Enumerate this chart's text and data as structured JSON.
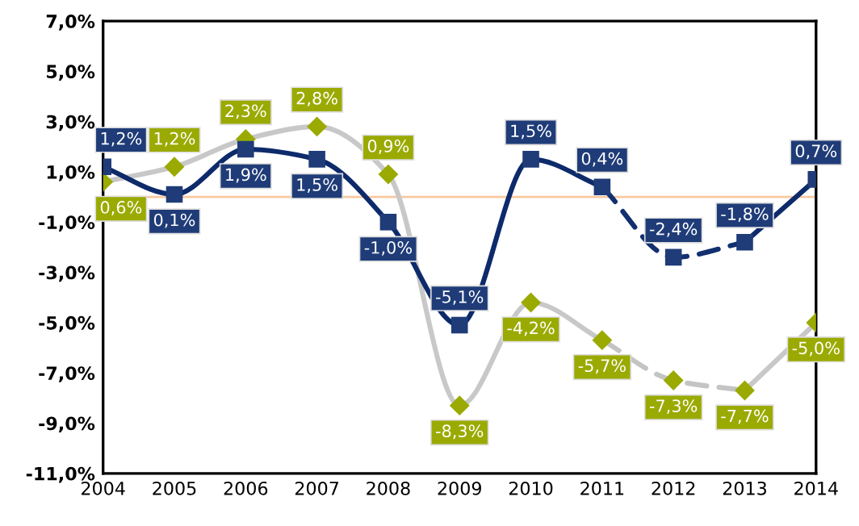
{
  "chart_data": {
    "type": "line",
    "categories": [
      "2004",
      "2005",
      "2006",
      "2007",
      "2008",
      "2009",
      "2010",
      "2011",
      "2012",
      "2013",
      "2014"
    ],
    "series": [
      {
        "color": "#c8c8c8",
        "line_style": "solid",
        "values": [
          0.6,
          1.2,
          2.3,
          2.8,
          0.9,
          -8.3,
          -4.2,
          -5.7,
          null,
          -7.7,
          -5.0
        ]
      },
      {
        "color": "#c4c4c4",
        "line_style": "dashed",
        "values": [
          null,
          null,
          null,
          null,
          null,
          null,
          null,
          -5.7,
          -7.3,
          -7.7,
          null
        ]
      },
      {
        "color": "#0d2a6b",
        "line_style": "solid",
        "values": [
          1.2,
          0.1,
          1.9,
          1.5,
          -1.0,
          -5.1,
          1.5,
          0.4,
          null,
          -1.8,
          0.7
        ]
      },
      {
        "color": "#12306f",
        "line_style": "dashed",
        "values": [
          null,
          null,
          null,
          null,
          null,
          null,
          null,
          0.4,
          -2.4,
          -1.8,
          null
        ]
      },
      {
        "type": "scatter",
        "color": "#9aaa00",
        "marker": "diamond",
        "values": [
          0.6,
          1.2,
          2.3,
          2.8,
          0.9,
          -8.3,
          -4.2,
          -5.7,
          -7.3,
          -7.7,
          -5.0
        ],
        "value_labels": [
          "0,6%",
          "1,2%",
          "2,3%",
          "2,8%",
          "0,9%",
          "-8,3%",
          "-4,2%",
          "-5,7%",
          "-7,3%",
          "-7,7%",
          "-5,0%"
        ]
      },
      {
        "type": "scatter",
        "color": "#1f3c78",
        "marker": "square",
        "values": [
          1.2,
          0.1,
          1.9,
          1.5,
          -1.0,
          -5.1,
          1.5,
          0.4,
          -2.4,
          -1.8,
          0.7
        ],
        "value_labels": [
          "1,2%",
          "0,1%",
          "1,9%",
          "1,5%",
          "-1,0%",
          "-5,1%",
          "1,5%",
          "0,4%",
          "-2,4%",
          "-1,8%",
          "0,7%"
        ]
      }
    ],
    "ylim": [
      -11,
      7
    ],
    "yticks": [
      {
        "value": -11,
        "label": "-11,0%"
      },
      {
        "value": -9,
        "label": "-9,0%"
      },
      {
        "value": -7,
        "label": "-7,0%"
      },
      {
        "value": -5,
        "label": "-5,0%"
      },
      {
        "value": -3,
        "label": "-3,0%"
      },
      {
        "value": -1,
        "label": "-1,0%"
      },
      {
        "value": 1,
        "label": "1,0%"
      },
      {
        "value": 3,
        "label": "3,0%"
      },
      {
        "value": 5,
        "label": "5,0%"
      },
      {
        "value": 7,
        "label": "7,0%"
      }
    ],
    "ref_lines": [
      {
        "axis": "y",
        "value": 0,
        "color": "#f8c8a0"
      }
    ],
    "grid": false,
    "legend": false
  }
}
